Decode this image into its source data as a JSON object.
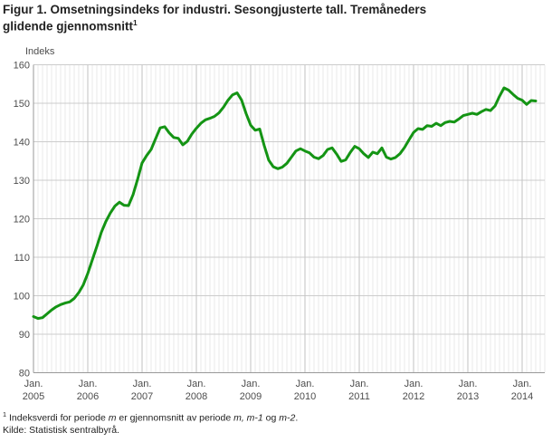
{
  "title": {
    "line1": "Figur 1. Omsetningsindeks for industri. Sesongjusterte tall. Tremåneders",
    "line2": "glidende gjennomsnitt",
    "superscript": "1"
  },
  "chart_data": {
    "type": "line",
    "title": "Figur 1. Omsetningsindeks for industri. Sesongjusterte tall. Tremåneders glidende gjennomsnitt",
    "y_axis_title": "Indeks",
    "ylim": [
      80,
      160
    ],
    "y_ticks": [
      80,
      90,
      100,
      110,
      120,
      130,
      140,
      150,
      160
    ],
    "x_tick_label_top": "Jan.",
    "x_tick_years": [
      "2005",
      "2006",
      "2007",
      "2008",
      "2009",
      "2010",
      "2011",
      "2012",
      "2013",
      "2014"
    ],
    "frequency": "monthly",
    "x_start": "2005-01",
    "x_end": "2014-04",
    "grid": {
      "h_color": "#cccccc",
      "minor_v_color": "#e9e9e9",
      "year_v_color": "#c2c2c2",
      "axis_color": "#999999"
    },
    "series": [
      {
        "name": "Omsetningsindeks for industri, sesongjustert, tremåneders glidende gjennomsnitt",
        "color": "#149414",
        "values": [
          94.6,
          94.1,
          94.3,
          95.3,
          96.3,
          97.1,
          97.7,
          98.1,
          98.4,
          99.3,
          100.8,
          102.8,
          105.8,
          109.3,
          112.8,
          116.5,
          119.3,
          121.5,
          123.3,
          124.3,
          123.5,
          123.4,
          126.2,
          130.2,
          134.5,
          136.4,
          138.0,
          140.8,
          143.6,
          143.9,
          142.3,
          141.1,
          140.9,
          139.2,
          140.1,
          142.0,
          143.5,
          144.8,
          145.7,
          146.1,
          146.6,
          147.5,
          149.0,
          150.8,
          152.2,
          152.7,
          150.8,
          147.3,
          144.3,
          143.0,
          143.3,
          139.0,
          135.2,
          133.5,
          133.0,
          133.4,
          134.4,
          136.0,
          137.6,
          138.2,
          137.6,
          137.1,
          136.0,
          135.6,
          136.4,
          138.0,
          138.4,
          136.8,
          134.9,
          135.3,
          137.2,
          138.8,
          138.2,
          136.9,
          135.9,
          137.3,
          136.9,
          138.4,
          136.0,
          135.5,
          135.9,
          136.9,
          138.5,
          140.5,
          142.4,
          143.4,
          143.2,
          144.2,
          144.0,
          144.8,
          144.2,
          145.0,
          145.3,
          145.1,
          145.9,
          146.8,
          147.1,
          147.4,
          147.1,
          147.8,
          148.4,
          148.1,
          149.3,
          151.8,
          154.0,
          153.4,
          152.3,
          151.3,
          150.8,
          149.7,
          150.7,
          150.6
        ]
      }
    ],
    "legend": "none"
  },
  "footer": {
    "footnote_sup": "1",
    "fn1": " Indeksverdi for periode ",
    "fn_m1": "m",
    "fn2": " er gjennomsnitt av periode ",
    "fn_m2": "m, m-1",
    "fn3": " og ",
    "fn_m3": "m-2",
    "fn4": ".",
    "source": "Kilde: Statistisk sentralbyrå."
  }
}
